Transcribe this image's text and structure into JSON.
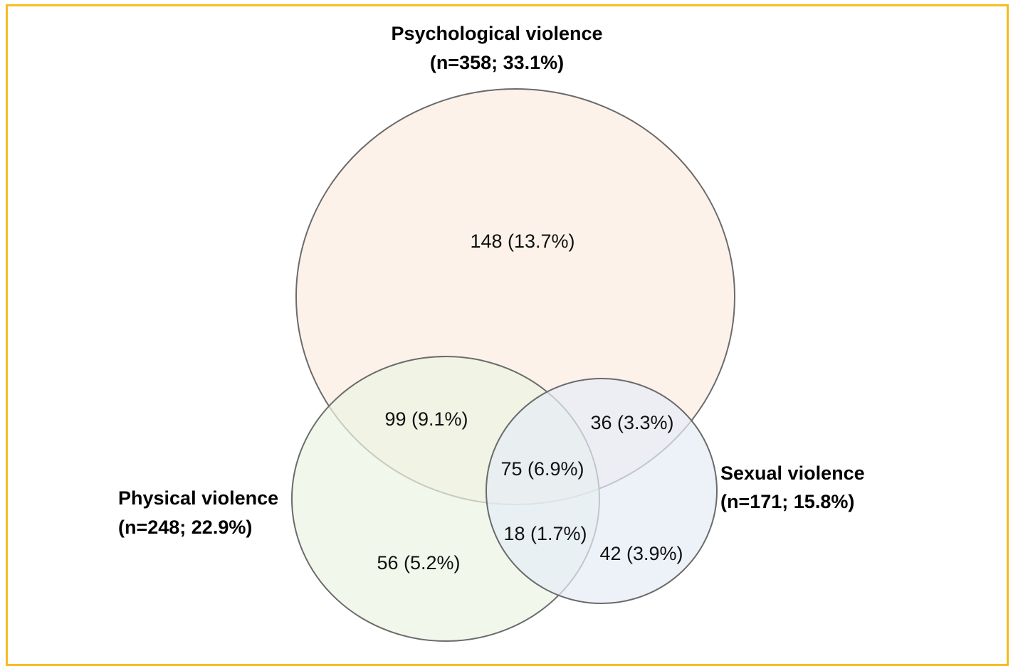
{
  "sets": {
    "psychological": {
      "name": "Psychological violence",
      "stat": "(n=358; 33.1%)",
      "fill": "#fbf0e6"
    },
    "physical": {
      "name": "Physical violence",
      "stat": "(n=248; 22.9%)",
      "fill": "#ecf3e2"
    },
    "sexual": {
      "name": "Sexual violence",
      "stat": "(n=171; 15.8%)",
      "fill": "#e6ecf7"
    }
  },
  "regions": {
    "psychological_only": "148 (13.7%)",
    "psych_physical": "99 (9.1%)",
    "psych_sexual": "36 (3.3%)",
    "all_three": "75 (6.9%)",
    "physical_sexual": "18 (1.7%)",
    "physical_only": "56 (5.2%)",
    "sexual_only": "42 (3.9%)"
  },
  "colors": {
    "border": "#f5bd1f",
    "outline": "#6b6b6b"
  }
}
